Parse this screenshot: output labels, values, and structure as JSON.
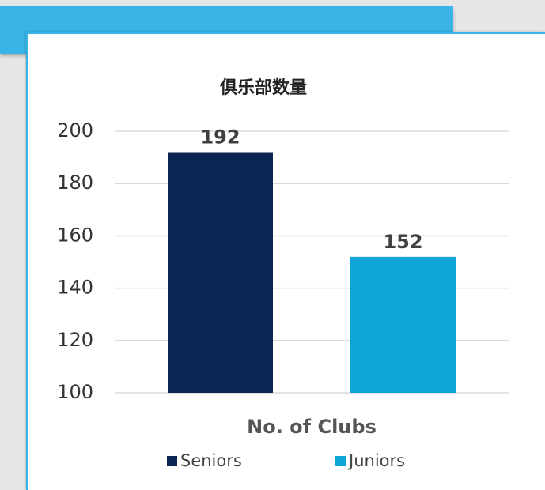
{
  "chart_data": {
    "type": "bar",
    "title": "俱乐部数量",
    "categories": [
      "No. of Clubs"
    ],
    "series": [
      {
        "name": "Seniors",
        "color": "#0b2653",
        "values": [
          192
        ]
      },
      {
        "name": "Juniors",
        "color": "#0ea5d8",
        "values": [
          152
        ]
      }
    ],
    "ylim": [
      100,
      200
    ],
    "yticks": [
      100,
      120,
      140,
      160,
      180,
      200
    ],
    "grid": true,
    "legend": "bottom",
    "data_labels": true
  }
}
